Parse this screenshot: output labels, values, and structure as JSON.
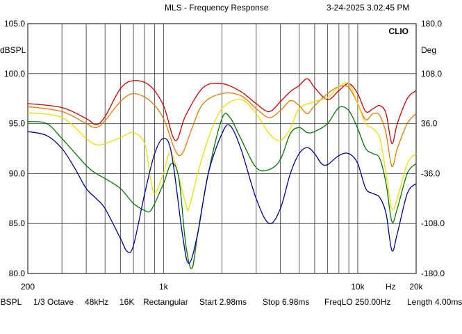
{
  "header": {
    "title": "MLS - Frequency Response",
    "timestamp": "3-24-2025 3.02.45 PM"
  },
  "footer": {
    "items": [
      "dBSPL",
      "1/3 Octave",
      "48kHz",
      "16K",
      "Rectangular",
      "Start 2.98ms",
      "Stop 6.98ms",
      "FreqLO 250.00Hz",
      "Length 4.00ms"
    ]
  },
  "chart_data": {
    "type": "line",
    "title": "MLS - Frequency Response",
    "brand": "CLIO",
    "xscale": "log",
    "xlim": [
      200,
      20000
    ],
    "ylim": [
      80,
      105
    ],
    "y2lim": [
      -180,
      180
    ],
    "ylabel": "dBSPL",
    "y2label": "Deg",
    "xunit": "Hz",
    "grid": true,
    "x_ticks": [
      {
        "value": 200,
        "label": "200"
      },
      {
        "value": 1000,
        "label": "1k"
      },
      {
        "value": 10000,
        "label": "10k"
      },
      {
        "value": 20000,
        "label": "20k"
      }
    ],
    "y_ticks": [
      {
        "value": 105,
        "label": "105.0"
      },
      {
        "value": 100,
        "label": "100.0"
      },
      {
        "value": 95,
        "label": "95.0"
      },
      {
        "value": 90,
        "label": "90.0"
      },
      {
        "value": 85,
        "label": "85.0"
      },
      {
        "value": 80,
        "label": "80.0"
      }
    ],
    "y2_ticks": [
      {
        "value": 180,
        "label": "180.0"
      },
      {
        "value": 108,
        "label": "108.0"
      },
      {
        "value": 36,
        "label": "36.0"
      },
      {
        "value": -36,
        "label": "-36.0"
      },
      {
        "value": -108,
        "label": "-108.0"
      },
      {
        "value": -180,
        "label": "-180.0"
      }
    ],
    "series": [
      {
        "color": "#cc0000",
        "points": [
          [
            200,
            97.0
          ],
          [
            300,
            96.6
          ],
          [
            400,
            95.5
          ],
          [
            450,
            94.9
          ],
          [
            500,
            95.7
          ],
          [
            600,
            98.5
          ],
          [
            700,
            99.3
          ],
          [
            850,
            98.8
          ],
          [
            1000,
            96.8
          ],
          [
            1150,
            93.3
          ],
          [
            1300,
            95.8
          ],
          [
            1600,
            98.6
          ],
          [
            2000,
            99.0
          ],
          [
            2500,
            98.2
          ],
          [
            3000,
            97.0
          ],
          [
            3500,
            96.2
          ],
          [
            4000,
            97.2
          ],
          [
            4500,
            98.2
          ],
          [
            5000,
            98.8
          ],
          [
            5500,
            99.5
          ],
          [
            6000,
            98.6
          ],
          [
            7000,
            97.4
          ],
          [
            8000,
            98.3
          ],
          [
            9000,
            99.0
          ],
          [
            10000,
            98.0
          ],
          [
            11000,
            96.2
          ],
          [
            12000,
            96.5
          ],
          [
            13000,
            96.8
          ],
          [
            14000,
            96.0
          ],
          [
            15000,
            93.0
          ],
          [
            16000,
            95.0
          ],
          [
            18000,
            97.5
          ],
          [
            20000,
            98.3
          ]
        ]
      },
      {
        "color": "#e07b00",
        "points": [
          [
            200,
            96.7
          ],
          [
            300,
            96.2
          ],
          [
            400,
            95.0
          ],
          [
            450,
            94.6
          ],
          [
            500,
            95.3
          ],
          [
            600,
            97.2
          ],
          [
            700,
            98.0
          ],
          [
            850,
            97.3
          ],
          [
            1000,
            95.5
          ],
          [
            1150,
            92.3
          ],
          [
            1250,
            92.0
          ],
          [
            1400,
            94.5
          ],
          [
            1600,
            97.0
          ],
          [
            2000,
            98.0
          ],
          [
            2500,
            97.8
          ],
          [
            3000,
            96.5
          ],
          [
            3500,
            95.6
          ],
          [
            4000,
            96.3
          ],
          [
            4500,
            97.3
          ],
          [
            5000,
            96.8
          ],
          [
            5500,
            96.0
          ],
          [
            6000,
            96.8
          ],
          [
            7000,
            98.0
          ],
          [
            8000,
            98.7
          ],
          [
            9000,
            98.6
          ],
          [
            10000,
            97.0
          ],
          [
            11000,
            95.4
          ],
          [
            12000,
            96.0
          ],
          [
            13000,
            95.8
          ],
          [
            14000,
            94.0
          ],
          [
            15000,
            90.7
          ],
          [
            16000,
            92.5
          ],
          [
            18000,
            95.0
          ],
          [
            20000,
            96.0
          ]
        ]
      },
      {
        "color": "#eedd00",
        "points": [
          [
            200,
            96.1
          ],
          [
            300,
            95.6
          ],
          [
            400,
            93.5
          ],
          [
            450,
            92.9
          ],
          [
            500,
            93.0
          ],
          [
            600,
            93.6
          ],
          [
            700,
            94.1
          ],
          [
            800,
            93.0
          ],
          [
            850,
            90.0
          ],
          [
            900,
            88.0
          ],
          [
            1000,
            90.0
          ],
          [
            1100,
            92.0
          ],
          [
            1300,
            87.0
          ],
          [
            1350,
            86.5
          ],
          [
            1500,
            90.0
          ],
          [
            1700,
            93.5
          ],
          [
            2000,
            96.5
          ],
          [
            2500,
            97.4
          ],
          [
            3000,
            96.0
          ],
          [
            3500,
            94.0
          ],
          [
            4000,
            93.3
          ],
          [
            4500,
            94.5
          ],
          [
            5000,
            96.5
          ],
          [
            6000,
            97.2
          ],
          [
            7000,
            97.6
          ],
          [
            8000,
            98.7
          ],
          [
            9000,
            99.0
          ],
          [
            10000,
            97.0
          ],
          [
            11000,
            95.0
          ],
          [
            12000,
            94.5
          ],
          [
            13000,
            93.5
          ],
          [
            14000,
            90.0
          ],
          [
            15000,
            86.5
          ],
          [
            16000,
            87.5
          ],
          [
            18000,
            91.0
          ],
          [
            20000,
            92.0
          ]
        ]
      },
      {
        "color": "#007700",
        "points": [
          [
            200,
            95.2
          ],
          [
            250,
            95.0
          ],
          [
            300,
            93.5
          ],
          [
            400,
            90.8
          ],
          [
            450,
            90.0
          ],
          [
            500,
            89.5
          ],
          [
            600,
            88.5
          ],
          [
            700,
            87.0
          ],
          [
            800,
            86.3
          ],
          [
            850,
            86.2
          ],
          [
            900,
            87.0
          ],
          [
            1000,
            89.0
          ],
          [
            1100,
            91.0
          ],
          [
            1200,
            89.5
          ],
          [
            1300,
            83.0
          ],
          [
            1400,
            80.5
          ],
          [
            1500,
            84.0
          ],
          [
            1700,
            90.0
          ],
          [
            2000,
            95.5
          ],
          [
            2200,
            95.6
          ],
          [
            2500,
            93.5
          ],
          [
            3000,
            90.6
          ],
          [
            3500,
            90.4
          ],
          [
            4000,
            91.4
          ],
          [
            4500,
            94.0
          ],
          [
            5000,
            94.6
          ],
          [
            5500,
            94.1
          ],
          [
            6000,
            94.2
          ],
          [
            7000,
            95.0
          ],
          [
            8000,
            96.6
          ],
          [
            9000,
            96.3
          ],
          [
            10000,
            94.5
          ],
          [
            11000,
            92.5
          ],
          [
            12000,
            92.0
          ],
          [
            13000,
            91.5
          ],
          [
            14000,
            89.0
          ],
          [
            15000,
            85.2
          ],
          [
            16000,
            86.5
          ],
          [
            18000,
            90.0
          ],
          [
            20000,
            91.0
          ]
        ]
      },
      {
        "color": "#000099",
        "points": [
          [
            200,
            94.2
          ],
          [
            250,
            93.8
          ],
          [
            300,
            92.5
          ],
          [
            350,
            90.5
          ],
          [
            400,
            88.5
          ],
          [
            450,
            87.5
          ],
          [
            500,
            86.5
          ],
          [
            600,
            83.5
          ],
          [
            650,
            82.2
          ],
          [
            700,
            82.8
          ],
          [
            800,
            88.0
          ],
          [
            900,
            92.0
          ],
          [
            1000,
            93.5
          ],
          [
            1100,
            92.0
          ],
          [
            1250,
            84.0
          ],
          [
            1350,
            81.0
          ],
          [
            1500,
            84.0
          ],
          [
            1700,
            90.0
          ],
          [
            2000,
            94.0
          ],
          [
            2200,
            94.8
          ],
          [
            2500,
            92.5
          ],
          [
            3000,
            87.5
          ],
          [
            3500,
            85.0
          ],
          [
            4000,
            86.5
          ],
          [
            4500,
            90.0
          ],
          [
            5000,
            92.0
          ],
          [
            5500,
            92.6
          ],
          [
            6000,
            92.0
          ],
          [
            6500,
            91.0
          ],
          [
            7000,
            90.9
          ],
          [
            8000,
            91.8
          ],
          [
            9000,
            92.0
          ],
          [
            10000,
            91.0
          ],
          [
            11000,
            88.5
          ],
          [
            12000,
            88.0
          ],
          [
            13000,
            87.6
          ],
          [
            14000,
            86.0
          ],
          [
            15000,
            82.3
          ],
          [
            16000,
            84.0
          ],
          [
            18000,
            88.0
          ],
          [
            20000,
            89.0
          ]
        ]
      }
    ]
  }
}
